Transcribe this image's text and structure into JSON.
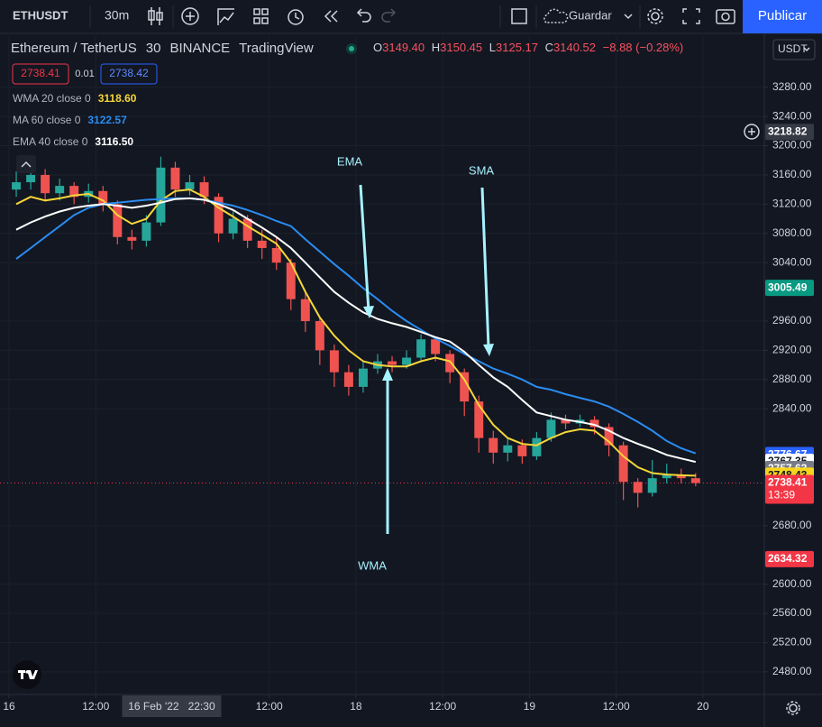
{
  "toolbar": {
    "symbol": "ETHUSDT",
    "interval": "30m",
    "save": "Guardar",
    "publish": "Publicar"
  },
  "legend": {
    "instrument": "Ethereum / TetherUS",
    "timeframe": "30",
    "exchange": "BINANCE",
    "source": "TradingView",
    "ohlc": [
      {
        "key": "O",
        "value": "3149.40"
      },
      {
        "key": "H",
        "value": "3150.45"
      },
      {
        "key": "L",
        "value": "3125.17"
      },
      {
        "key": "C",
        "value": "3140.52"
      }
    ],
    "change": "−8.88 (−0.28%)",
    "bid": "2738.41",
    "spread": "0.01",
    "ask": "2738.42",
    "currency": "USDT"
  },
  "chart_data": {
    "type": "candlestick",
    "x": [
      1,
      3,
      5,
      7,
      9,
      11,
      13,
      15,
      17,
      19,
      21,
      23,
      25,
      27,
      29,
      31,
      33,
      35,
      37,
      39,
      41,
      43,
      45,
      47,
      49,
      51,
      53,
      55,
      57,
      59,
      61,
      63,
      65,
      67,
      69,
      71,
      73,
      75,
      77,
      79,
      81,
      83,
      85,
      87,
      89,
      91,
      93,
      95
    ],
    "open": [
      3140,
      3150,
      3160,
      3135,
      3145,
      3130,
      3138,
      3120,
      3075,
      3070,
      3095,
      3170,
      3140,
      3150,
      3130,
      3080,
      3100,
      3070,
      3060,
      3040,
      2990,
      2960,
      2920,
      2890,
      2870,
      2895,
      2905,
      2900,
      2910,
      2935,
      2915,
      2890,
      2850,
      2800,
      2780,
      2790,
      2775,
      2800,
      2825,
      2820,
      2825,
      2815,
      2790,
      2740,
      2725,
      2745,
      2750,
      2745
    ],
    "high": [
      3165,
      3172,
      3168,
      3155,
      3150,
      3148,
      3145,
      3125,
      3085,
      3105,
      3185,
      3178,
      3160,
      3158,
      3135,
      3110,
      3105,
      3085,
      3075,
      3045,
      2998,
      2965,
      2928,
      2900,
      2905,
      2915,
      2912,
      2920,
      2942,
      2938,
      2920,
      2895,
      2858,
      2810,
      2800,
      2798,
      2808,
      2835,
      2832,
      2832,
      2830,
      2820,
      2795,
      2745,
      2770,
      2765,
      2758,
      2752
    ],
    "low": [
      3130,
      3140,
      3125,
      3125,
      3120,
      3122,
      3110,
      3065,
      3058,
      3062,
      3090,
      3130,
      3132,
      3120,
      3068,
      3072,
      3060,
      3045,
      3030,
      2975,
      2945,
      2900,
      2870,
      2858,
      2862,
      2888,
      2890,
      2895,
      2905,
      2905,
      2875,
      2830,
      2780,
      2765,
      2768,
      2765,
      2770,
      2795,
      2812,
      2815,
      2805,
      2775,
      2715,
      2705,
      2720,
      2738,
      2738,
      2734
    ],
    "close": [
      3150,
      3160,
      3135,
      3145,
      3130,
      3138,
      3120,
      3075,
      3070,
      3095,
      3170,
      3140,
      3150,
      3130,
      3080,
      3100,
      3070,
      3060,
      3040,
      2990,
      2960,
      2920,
      2890,
      2870,
      2895,
      2905,
      2900,
      2910,
      2935,
      2915,
      2890,
      2850,
      2800,
      2780,
      2790,
      2775,
      2800,
      2825,
      2820,
      2825,
      2815,
      2790,
      2740,
      2725,
      2745,
      2750,
      2745,
      2738.41
    ],
    "up_color": "#26a69a",
    "down_color": "#ef5350",
    "series": [
      {
        "name": "WMA 20 close 0",
        "last_label": "3118.60",
        "color": "#f5d638",
        "values": [
          3120,
          3130,
          3125,
          3128,
          3132,
          3134,
          3125,
          3105,
          3093,
          3100,
          3125,
          3138,
          3140,
          3130,
          3115,
          3103,
          3090,
          3078,
          3066,
          3040,
          3000,
          2965,
          2940,
          2920,
          2905,
          2900,
          2898,
          2898,
          2905,
          2910,
          2905,
          2880,
          2845,
          2818,
          2800,
          2792,
          2790,
          2800,
          2808,
          2812,
          2810,
          2795,
          2775,
          2760,
          2752,
          2750,
          2749,
          2748.43
        ]
      },
      {
        "name": "MA 60 close 0",
        "last_label": "3122.57",
        "color": "#2a8cf0",
        "values": [
          3045,
          3060,
          3075,
          3090,
          3105,
          3115,
          3120,
          3122,
          3124,
          3126,
          3127,
          3128,
          3128,
          3126,
          3122,
          3118,
          3112,
          3105,
          3097,
          3090,
          3072,
          3055,
          3038,
          3022,
          3005,
          2990,
          2974,
          2960,
          2948,
          2936,
          2926,
          2915,
          2905,
          2895,
          2888,
          2880,
          2870,
          2866,
          2860,
          2855,
          2850,
          2843,
          2833,
          2822,
          2810,
          2796,
          2786,
          2779
        ]
      },
      {
        "name": "EMA 40 close 0",
        "last_label": "3116.50",
        "color": "#ffffff",
        "values": [
          3085,
          3095,
          3103,
          3110,
          3115,
          3118,
          3120,
          3118,
          3115,
          3118,
          3122,
          3127,
          3128,
          3126,
          3120,
          3112,
          3100,
          3088,
          3075,
          3060,
          3040,
          3020,
          3000,
          2985,
          2972,
          2963,
          2957,
          2952,
          2945,
          2938,
          2932,
          2918,
          2900,
          2883,
          2870,
          2852,
          2835,
          2830,
          2825,
          2822,
          2818,
          2810,
          2800,
          2792,
          2785,
          2777,
          2772,
          2767.35
        ]
      }
    ],
    "xlim": [
      -1.25,
      104.5
    ],
    "xticks": [
      {
        "value": 0,
        "label": "16"
      },
      {
        "value": 12,
        "label": "12:00"
      },
      {
        "value": 36,
        "label": "12:00"
      },
      {
        "value": 48,
        "label": "18"
      },
      {
        "value": 60,
        "label": "12:00"
      },
      {
        "value": 72,
        "label": "19"
      },
      {
        "value": 84,
        "label": "12:00"
      },
      {
        "value": 96,
        "label": "20"
      }
    ],
    "crosshair_x": {
      "value": 22.5,
      "label": "16 Feb '22   22:30"
    },
    "ylim": [
      2449,
      3350
    ],
    "yticks": [
      {
        "value": 3280,
        "label": "3280.00"
      },
      {
        "value": 3240,
        "label": "3240.00"
      },
      {
        "value": 3200,
        "label": "3200.00"
      },
      {
        "value": 3160,
        "label": "3160.00"
      },
      {
        "value": 3120,
        "label": "3120.00"
      },
      {
        "value": 3080,
        "label": "3080.00"
      },
      {
        "value": 3040,
        "label": "3040.00"
      },
      {
        "value": 2960,
        "label": "2960.00"
      },
      {
        "value": 2920,
        "label": "2920.00"
      },
      {
        "value": 2880,
        "label": "2880.00"
      },
      {
        "value": 2840,
        "label": "2840.00"
      },
      {
        "value": 2680,
        "label": "2680.00"
      },
      {
        "value": 2600,
        "label": "2600.00"
      },
      {
        "value": 2560,
        "label": "2560.00"
      },
      {
        "value": 2520,
        "label": "2520.00"
      },
      {
        "value": 2480,
        "label": "2480.00"
      }
    ],
    "grid": true,
    "price_labels": [
      {
        "value": 3218.82,
        "color": "#363a45"
      },
      {
        "value": 3005.49,
        "color": "#089981"
      },
      {
        "value": 2776.67,
        "color": "#2962ff"
      },
      {
        "value": 2767.35,
        "color": "#ffffff"
      },
      {
        "value": 2757.63,
        "color": "#787b86"
      },
      {
        "value": 2748.43,
        "color": "#f7d51d"
      },
      {
        "value": 2738.41,
        "color": "#f23645"
      },
      {
        "value": 2634.32,
        "color": "#f23645"
      }
    ],
    "countdown": "13:39",
    "annotations": [
      "EMA",
      "SMA",
      "WMA"
    ]
  }
}
